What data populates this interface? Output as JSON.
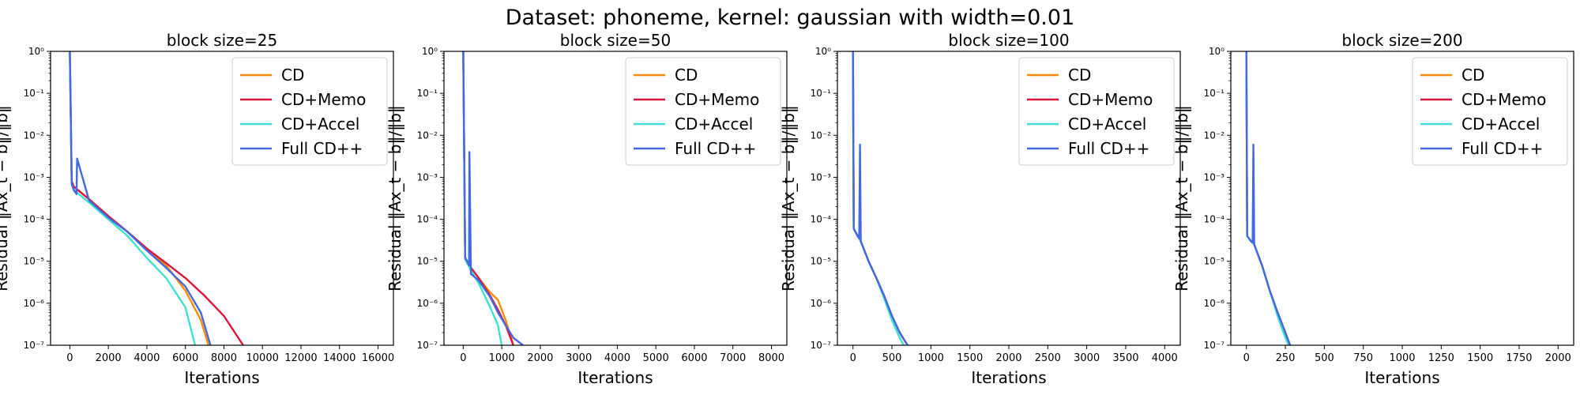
{
  "figure": {
    "suptitle": "Dataset: phoneme, kernel: gaussian with width=0.01"
  },
  "colors": {
    "CD": "#ff8c00",
    "CD+Memo": "#dc143c",
    "CD+Accel": "#40e0d0",
    "Full CD++": "#4169e1"
  },
  "chart_data": [
    {
      "type": "line",
      "title": "block size=25",
      "xlabel": "Iterations",
      "ylabel": "Residual ‖Ax_t − b‖/‖b‖",
      "xlim": [
        -1000,
        16800
      ],
      "xticks": [
        0,
        2000,
        4000,
        6000,
        8000,
        10000,
        12000,
        14000,
        16000
      ],
      "yscale": "log",
      "ylim": [
        1e-07,
        1
      ],
      "legend": "upper right",
      "series": [
        {
          "name": "CD",
          "x": [
            0,
            100,
            200,
            1000,
            2000,
            3000,
            4000,
            5000,
            6000,
            6800,
            7200
          ],
          "y": [
            1,
            0.0008,
            0.0006,
            0.0003,
            0.00012,
            5e-05,
            2e-05,
            8e-06,
            2e-06,
            4e-07,
            1e-07
          ]
        },
        {
          "name": "CD+Memo",
          "x": [
            0,
            100,
            200,
            1000,
            2000,
            3000,
            4000,
            5000,
            6000,
            7000,
            8000,
            9000
          ],
          "y": [
            1,
            0.0008,
            0.0006,
            0.0003,
            0.00012,
            5e-05,
            2e-05,
            9e-06,
            4e-06,
            1.5e-06,
            5e-07,
            1e-07
          ]
        },
        {
          "name": "CD+Accel",
          "x": [
            0,
            100,
            200,
            1000,
            2000,
            3000,
            4000,
            5000,
            6000,
            6500
          ],
          "y": [
            1,
            0.0007,
            0.0005,
            0.00025,
            0.0001,
            4e-05,
            1.2e-05,
            4e-06,
            8e-07,
            1e-07
          ]
        },
        {
          "name": "Full CD++",
          "x": [
            0,
            100,
            200,
            350,
            380,
            1000,
            2000,
            3000,
            4000,
            5000,
            6000,
            6800,
            7300
          ],
          "y": [
            1,
            0.0007,
            0.0005,
            0.0004,
            0.0028,
            0.00028,
            0.00011,
            5e-05,
            1.8e-05,
            7e-06,
            2.5e-06,
            6e-07,
            1e-07
          ]
        }
      ]
    },
    {
      "type": "line",
      "title": "block size=50",
      "xlabel": "Iterations",
      "ylabel": "Residual ‖Ax_t − b‖/‖b‖",
      "xlim": [
        -500,
        8400
      ],
      "xticks": [
        0,
        1000,
        2000,
        3000,
        4000,
        5000,
        6000,
        7000,
        8000
      ],
      "yscale": "log",
      "ylim": [
        1e-07,
        1
      ],
      "legend": "upper right",
      "series": [
        {
          "name": "CD",
          "x": [
            0,
            50,
            100,
            200,
            400,
            700,
            900,
            1100,
            1300
          ],
          "y": [
            1,
            1.2e-05,
            1e-05,
            7e-06,
            4e-06,
            1.8e-06,
            1.2e-06,
            4e-07,
            1e-07
          ]
        },
        {
          "name": "CD+Memo",
          "x": [
            0,
            50,
            100,
            200,
            400,
            700,
            900,
            1100,
            1300
          ],
          "y": [
            1,
            1.2e-05,
            1e-05,
            7e-06,
            4e-06,
            1.5e-06,
            7e-07,
            3e-07,
            1e-07
          ]
        },
        {
          "name": "CD+Accel",
          "x": [
            0,
            50,
            100,
            200,
            400,
            700,
            900,
            1000
          ],
          "y": [
            1,
            1.1e-05,
            9e-06,
            6e-06,
            3e-06,
            8e-07,
            3e-07,
            1e-07
          ]
        },
        {
          "name": "Full CD++",
          "x": [
            0,
            50,
            100,
            150,
            160,
            200,
            400,
            700,
            900,
            1100,
            1300,
            1550
          ],
          "y": [
            1,
            1.2e-05,
            1e-05,
            8e-06,
            0.004,
            5e-06,
            3.5e-06,
            1.4e-06,
            6e-07,
            3e-07,
            1.5e-07,
            1e-07
          ]
        }
      ]
    },
    {
      "type": "line",
      "title": "block size=100",
      "xlabel": "Iterations",
      "ylabel": "Residual ‖Ax_t − b‖/‖b‖",
      "xlim": [
        -200,
        4200
      ],
      "xticks": [
        0,
        500,
        1000,
        1500,
        2000,
        2500,
        3000,
        3500,
        4000
      ],
      "yscale": "log",
      "ylim": [
        1e-07,
        1
      ],
      "legend": "upper right",
      "series": [
        {
          "name": "CD",
          "x": [
            0,
            10,
            60,
            100,
            200,
            300,
            400,
            500,
            600,
            700
          ],
          "y": [
            1,
            6e-05,
            4e-05,
            3e-05,
            1e-05,
            4e-06,
            1.5e-06,
            5e-07,
            2e-07,
            1e-07
          ]
        },
        {
          "name": "CD+Memo",
          "x": [
            0,
            10,
            60,
            100,
            200,
            300,
            400,
            500,
            600,
            700
          ],
          "y": [
            1,
            6e-05,
            4e-05,
            3e-05,
            1e-05,
            4e-06,
            1.5e-06,
            5e-07,
            2e-07,
            1e-07
          ]
        },
        {
          "name": "CD+Accel",
          "x": [
            0,
            10,
            60,
            100,
            200,
            300,
            400,
            500,
            600,
            650
          ],
          "y": [
            1,
            6e-05,
            4e-05,
            3e-05,
            1e-05,
            4e-06,
            1.3e-06,
            4e-07,
            1.5e-07,
            1e-07
          ]
        },
        {
          "name": "Full CD++",
          "x": [
            0,
            10,
            60,
            80,
            90,
            100,
            200,
            300,
            400,
            500,
            600,
            700
          ],
          "y": [
            1,
            6e-05,
            4e-05,
            3.5e-05,
            0.006,
            3e-05,
            1e-05,
            4e-06,
            1.5e-06,
            5e-07,
            2e-07,
            1e-07
          ]
        }
      ]
    },
    {
      "type": "line",
      "title": "block size=200",
      "xlabel": "Iterations",
      "ylabel": "Residual ‖Ax_t − b‖/‖b‖",
      "xlim": [
        -100,
        2100
      ],
      "xticks": [
        0,
        250,
        500,
        750,
        1000,
        1250,
        1500,
        1750,
        2000
      ],
      "yscale": "log",
      "ylim": [
        1e-07,
        1
      ],
      "legend": "upper right",
      "series": [
        {
          "name": "CD",
          "x": [
            0,
            5,
            30,
            50,
            100,
            150,
            200,
            250,
            280
          ],
          "y": [
            1,
            4e-05,
            3e-05,
            2.5e-05,
            8e-06,
            2e-06,
            6e-07,
            2e-07,
            1e-07
          ]
        },
        {
          "name": "CD+Memo",
          "x": [
            0,
            5,
            30,
            50,
            100,
            150,
            200,
            250,
            280
          ],
          "y": [
            1,
            4e-05,
            3e-05,
            2.5e-05,
            8e-06,
            2e-06,
            6e-07,
            2e-07,
            1e-07
          ]
        },
        {
          "name": "CD+Accel",
          "x": [
            0,
            5,
            30,
            50,
            100,
            150,
            200,
            250,
            270
          ],
          "y": [
            1,
            4e-05,
            3e-05,
            2.5e-05,
            8e-06,
            2e-06,
            5e-07,
            1.5e-07,
            1e-07
          ]
        },
        {
          "name": "Full CD++",
          "x": [
            0,
            5,
            30,
            40,
            45,
            50,
            100,
            150,
            200,
            250,
            280
          ],
          "y": [
            1,
            4e-05,
            3e-05,
            2.8e-05,
            0.006,
            2.5e-05,
            8e-06,
            2e-06,
            6e-07,
            2e-07,
            1e-07
          ]
        }
      ]
    }
  ]
}
